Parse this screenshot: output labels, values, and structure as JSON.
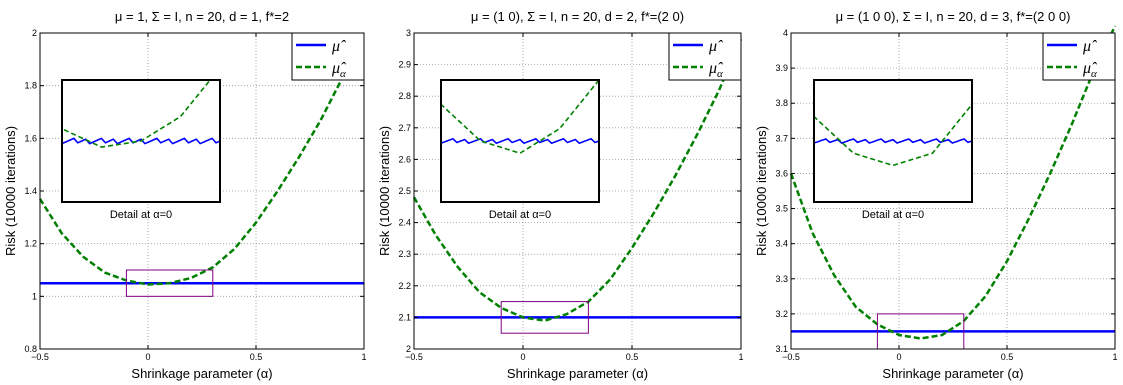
{
  "chart_data": [
    {
      "type": "line",
      "title": "μ = 1, Σ = I, n = 20, d = 1, f*=2",
      "xlabel": "Shrinkage parameter (α)",
      "ylabel": "Risk (10000 iterations)",
      "xlim": [
        -0.5,
        1
      ],
      "ylim": [
        0.8,
        2
      ],
      "xticks": [
        -0.5,
        0,
        0.5,
        1
      ],
      "xtick_labels": [
        "−0.5",
        "0",
        "0.5",
        "1"
      ],
      "yticks": [
        0.8,
        1,
        1.2,
        1.4,
        1.6,
        1.8,
        2
      ],
      "ytick_labels": [
        "0.8",
        "1",
        "1.2",
        "1.4",
        "1.6",
        "1.8",
        "2"
      ],
      "grid": true,
      "legend": "top-right",
      "series": [
        {
          "name": "μ̂",
          "color": "#0000ff",
          "style": "solid",
          "x": [
            -0.5,
            0,
            0.5,
            1
          ],
          "y": [
            1.05,
            1.05,
            1.05,
            1.05
          ]
        },
        {
          "name": "μ̂α",
          "color": "#008000",
          "style": "dashed",
          "x": [
            -0.5,
            -0.4,
            -0.3,
            -0.2,
            -0.1,
            0,
            0.1,
            0.2,
            0.3,
            0.4,
            0.5,
            0.6,
            0.7,
            0.8,
            0.9,
            1
          ],
          "y": [
            1.37,
            1.24,
            1.15,
            1.09,
            1.06,
            1.045,
            1.05,
            1.07,
            1.11,
            1.18,
            1.28,
            1.4,
            1.53,
            1.67,
            1.83,
            2.0
          ]
        }
      ],
      "inset": {
        "label": "Detail at α=0",
        "rect_x": [
          -0.1,
          0.3
        ],
        "rect_y": [
          1.0,
          1.1
        ]
      }
    },
    {
      "type": "line",
      "title": "μ = (1 0), Σ = I, n = 20, d = 2, f*=(2 0)",
      "xlabel": "Shrinkage parameter (α)",
      "ylabel": "Risk (10000 iterations)",
      "xlim": [
        -0.5,
        1
      ],
      "ylim": [
        2,
        3
      ],
      "xticks": [
        -0.5,
        0,
        0.5,
        1
      ],
      "xtick_labels": [
        "−0.5",
        "0",
        "0.5",
        "1"
      ],
      "yticks": [
        2,
        2.1,
        2.2,
        2.3,
        2.4,
        2.5,
        2.6,
        2.7,
        2.8,
        2.9,
        3
      ],
      "ytick_labels": [
        "2",
        "2.1",
        "2.2",
        "2.3",
        "2.4",
        "2.5",
        "2.6",
        "2.7",
        "2.8",
        "2.9",
        "3"
      ],
      "grid": true,
      "legend": "top-right",
      "series": [
        {
          "name": "μ̂",
          "color": "#0000ff",
          "style": "solid",
          "x": [
            -0.5,
            0,
            0.5,
            1
          ],
          "y": [
            2.1,
            2.1,
            2.1,
            2.1
          ]
        },
        {
          "name": "μ̂α",
          "color": "#008000",
          "style": "dashed",
          "x": [
            -0.5,
            -0.4,
            -0.3,
            -0.2,
            -0.1,
            0,
            0.1,
            0.2,
            0.3,
            0.4,
            0.5,
            0.6,
            0.7,
            0.8,
            0.9,
            1
          ],
          "y": [
            2.48,
            2.36,
            2.26,
            2.18,
            2.13,
            2.1,
            2.09,
            2.11,
            2.15,
            2.22,
            2.32,
            2.43,
            2.55,
            2.68,
            2.82,
            2.98
          ]
        }
      ],
      "inset": {
        "label": "Detail at α=0",
        "rect_x": [
          -0.1,
          0.3
        ],
        "rect_y": [
          2.05,
          2.15
        ]
      }
    },
    {
      "type": "line",
      "title": "μ = (1 0 0), Σ = I, n = 20, d = 3, f*=(2 0 0)",
      "xlabel": "Shrinkage parameter (α)",
      "ylabel": "Risk (10000 iterations)",
      "xlim": [
        -0.5,
        1
      ],
      "ylim": [
        3.1,
        4
      ],
      "xticks": [
        -0.5,
        0,
        0.5,
        1
      ],
      "xtick_labels": [
        "−0.5",
        "0",
        "0.5",
        "1"
      ],
      "yticks": [
        3.1,
        3.2,
        3.3,
        3.4,
        3.5,
        3.6,
        3.7,
        3.8,
        3.9,
        4
      ],
      "ytick_labels": [
        "3.1",
        "3.2",
        "3.3",
        "3.4",
        "3.5",
        "3.6",
        "3.7",
        "3.8",
        "3.9",
        "4"
      ],
      "grid": true,
      "legend": "top-right",
      "series": [
        {
          "name": "μ̂",
          "color": "#0000ff",
          "style": "solid",
          "x": [
            -0.5,
            0,
            0.5,
            1
          ],
          "y": [
            3.15,
            3.15,
            3.15,
            3.15
          ]
        },
        {
          "name": "μ̂α",
          "color": "#008000",
          "style": "dashed",
          "x": [
            -0.5,
            -0.4,
            -0.3,
            -0.2,
            -0.1,
            0,
            0.1,
            0.2,
            0.3,
            0.4,
            0.5,
            0.6,
            0.7,
            0.8,
            0.9,
            1
          ],
          "y": [
            3.6,
            3.43,
            3.31,
            3.22,
            3.17,
            3.14,
            3.13,
            3.14,
            3.18,
            3.25,
            3.35,
            3.47,
            3.6,
            3.74,
            3.89,
            4.02
          ]
        }
      ],
      "inset": {
        "label": "Detail at α=0",
        "rect_x": [
          -0.1,
          0.3
        ],
        "rect_y": [
          3.1,
          3.2
        ]
      }
    }
  ]
}
